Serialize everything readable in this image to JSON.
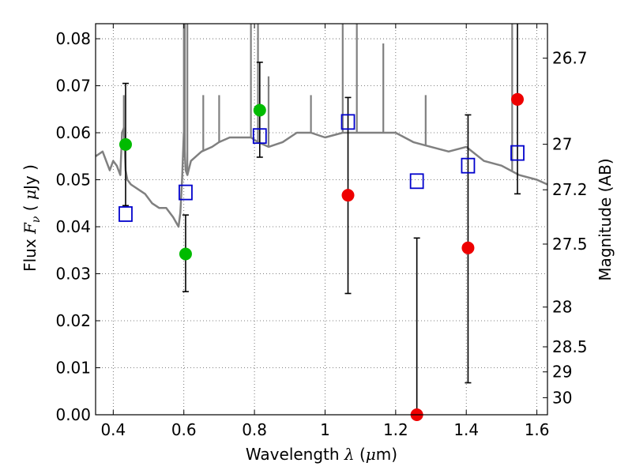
{
  "chart_data": {
    "type": "scatter",
    "title": "",
    "xlabel": {
      "pre": "Wavelength ",
      "sym": "λ",
      "post_open": " (",
      "unit_sym": "μ",
      "unit": "m)"
    },
    "ylabel": {
      "pre": "Flux ",
      "sym": "F",
      "sub": "ν",
      "post_open": " ( ",
      "unit_sym": "μ",
      "unit": "Jy )"
    },
    "y2label": "Magnitude (AB)",
    "xlim": [
      0.35,
      1.63
    ],
    "ylim": [
      0.0,
      0.0832
    ],
    "grid": true,
    "x_ticks": [
      {
        "v": 0.4,
        "label": "0.4"
      },
      {
        "v": 0.6,
        "label": "0.6"
      },
      {
        "v": 0.8,
        "label": "0.8"
      },
      {
        "v": 1.0,
        "label": "1"
      },
      {
        "v": 1.2,
        "label": "1.2"
      },
      {
        "v": 1.4,
        "label": "1.4"
      },
      {
        "v": 1.6,
        "label": "1.6"
      }
    ],
    "y_ticks": [
      {
        "v": 0.0,
        "label": "0.00"
      },
      {
        "v": 0.01,
        "label": "0.01"
      },
      {
        "v": 0.02,
        "label": "0.02"
      },
      {
        "v": 0.03,
        "label": "0.03"
      },
      {
        "v": 0.04,
        "label": "0.04"
      },
      {
        "v": 0.05,
        "label": "0.05"
      },
      {
        "v": 0.06,
        "label": "0.06"
      },
      {
        "v": 0.07,
        "label": "0.07"
      },
      {
        "v": 0.08,
        "label": "0.08"
      }
    ],
    "y2_ticks": [
      {
        "mag": 26.7,
        "label": "26.7"
      },
      {
        "mag": 27,
        "label": "27"
      },
      {
        "mag": 27.2,
        "label": "27.2"
      },
      {
        "mag": 27.5,
        "label": "27.5"
      },
      {
        "mag": 28,
        "label": "28"
      },
      {
        "mag": 28.5,
        "label": "28.5"
      },
      {
        "mag": 29,
        "label": "29"
      },
      {
        "mag": 30,
        "label": "30"
      }
    ],
    "colors": {
      "spectrum": "#808080",
      "green": "#00bb00",
      "red": "#ee0000",
      "model": "#0000cc",
      "errorbar": "#000000",
      "grid": "#555555"
    },
    "series": [
      {
        "kind": "spectrum",
        "x": [
          0.35,
          0.37,
          0.38,
          0.39,
          0.4,
          0.41,
          0.42,
          0.425,
          0.43,
          0.435,
          0.44,
          0.45,
          0.47,
          0.49,
          0.51,
          0.53,
          0.55,
          0.57,
          0.585,
          0.59,
          0.595,
          0.6,
          0.605,
          0.61,
          0.62,
          0.65,
          0.68,
          0.7,
          0.73,
          0.76,
          0.79,
          0.81,
          0.84,
          0.88,
          0.92,
          0.96,
          1.0,
          1.05,
          1.1,
          1.15,
          1.2,
          1.25,
          1.3,
          1.35,
          1.4,
          1.45,
          1.5,
          1.55,
          1.6,
          1.63
        ],
        "y": [
          0.055,
          0.056,
          0.054,
          0.052,
          0.054,
          0.053,
          0.051,
          0.06,
          0.061,
          0.052,
          0.05,
          0.049,
          0.048,
          0.047,
          0.045,
          0.044,
          0.044,
          0.042,
          0.04,
          0.043,
          0.05,
          0.06,
          0.052,
          0.051,
          0.054,
          0.056,
          0.057,
          0.058,
          0.059,
          0.059,
          0.059,
          0.058,
          0.057,
          0.058,
          0.06,
          0.06,
          0.059,
          0.06,
          0.06,
          0.06,
          0.06,
          0.058,
          0.057,
          0.056,
          0.057,
          0.054,
          0.053,
          0.051,
          0.05,
          0.049
        ]
      },
      {
        "kind": "spectrum-lines",
        "lines": [
          {
            "x": 0.43,
            "top": 0.068
          },
          {
            "x": 0.6,
            "top": 0.0832
          },
          {
            "x": 0.603,
            "top": 0.0832
          },
          {
            "x": 0.61,
            "top": 0.0832
          },
          {
            "x": 0.655,
            "top": 0.068
          },
          {
            "x": 0.7,
            "top": 0.068
          },
          {
            "x": 0.79,
            "top": 0.0832
          },
          {
            "x": 0.81,
            "top": 0.0832
          },
          {
            "x": 0.84,
            "top": 0.072
          },
          {
            "x": 0.96,
            "top": 0.068
          },
          {
            "x": 1.05,
            "top": 0.0832
          },
          {
            "x": 1.09,
            "top": 0.0832
          },
          {
            "x": 1.165,
            "top": 0.079
          },
          {
            "x": 1.285,
            "top": 0.068
          },
          {
            "x": 1.53,
            "top": 0.0832
          }
        ]
      },
      {
        "kind": "observed-green",
        "points": [
          {
            "x": 0.435,
            "y": 0.0575,
            "lo": 0.0445,
            "hi": 0.0705
          },
          {
            "x": 0.605,
            "y": 0.0342,
            "lo": 0.0262,
            "hi": 0.0425
          },
          {
            "x": 0.815,
            "y": 0.0648,
            "lo": 0.0548,
            "hi": 0.075
          }
        ]
      },
      {
        "kind": "observed-red",
        "points": [
          {
            "x": 1.065,
            "y": 0.0467,
            "lo": 0.0258,
            "hi": 0.0675
          },
          {
            "x": 1.26,
            "y": 0.0,
            "lo": 0.0,
            "hi": 0.0376
          },
          {
            "x": 1.405,
            "y": 0.0355,
            "lo": 0.0068,
            "hi": 0.0638
          },
          {
            "x": 1.545,
            "y": 0.0671,
            "lo": 0.047,
            "hi": 0.0832
          }
        ]
      },
      {
        "kind": "model",
        "points": [
          {
            "x": 0.435,
            "y": 0.0427
          },
          {
            "x": 0.605,
            "y": 0.0473
          },
          {
            "x": 0.815,
            "y": 0.0593
          },
          {
            "x": 1.065,
            "y": 0.0623
          },
          {
            "x": 1.26,
            "y": 0.0497
          },
          {
            "x": 1.405,
            "y": 0.053
          },
          {
            "x": 1.545,
            "y": 0.0557
          }
        ]
      }
    ]
  }
}
